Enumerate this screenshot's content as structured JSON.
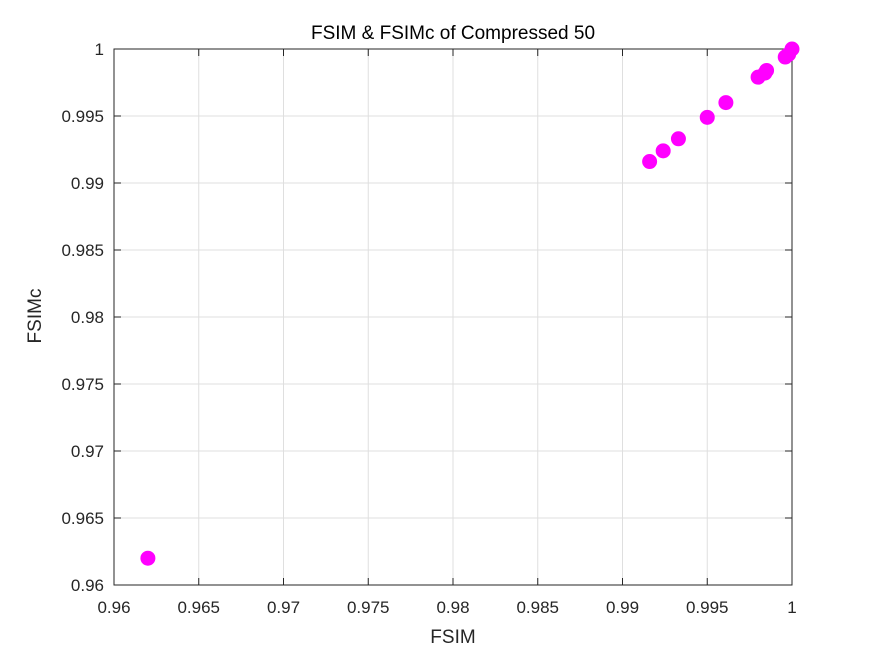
{
  "colors": {
    "marker": "#ff00ff",
    "grid": "#dfdfdf",
    "axis": "#262626",
    "background": "#ffffff"
  },
  "chart_data": {
    "type": "scatter",
    "title": "FSIM & FSIMc of Compressed 50",
    "xlabel": "FSIM",
    "ylabel": "FSIMc",
    "xlim": [
      0.96,
      1
    ],
    "ylim": [
      0.96,
      1
    ],
    "grid": true,
    "xticks": [
      0.96,
      0.965,
      0.97,
      0.975,
      0.98,
      0.985,
      0.99,
      0.995,
      1
    ],
    "yticks": [
      0.96,
      0.965,
      0.97,
      0.975,
      0.98,
      0.985,
      0.99,
      0.995,
      1
    ],
    "xtick_labels": [
      "0.96",
      "0.965",
      "0.97",
      "0.975",
      "0.98",
      "0.985",
      "0.99",
      "0.995",
      "1"
    ],
    "ytick_labels": [
      "0.96",
      "0.965",
      "0.97",
      "0.975",
      "0.98",
      "0.985",
      "0.99",
      "0.995",
      "1"
    ],
    "series": [
      {
        "color": "#ff00ff",
        "marker": "filled-circle",
        "x": [
          0.962,
          0.9916,
          0.9924,
          0.9933,
          0.995,
          0.9961,
          0.998,
          0.9984,
          0.9985,
          0.9996,
          0.9998,
          1.0
        ],
        "y": [
          0.962,
          0.9916,
          0.9924,
          0.9933,
          0.9949,
          0.996,
          0.9979,
          0.9982,
          0.9984,
          0.9994,
          0.9996,
          1.0
        ]
      }
    ]
  }
}
